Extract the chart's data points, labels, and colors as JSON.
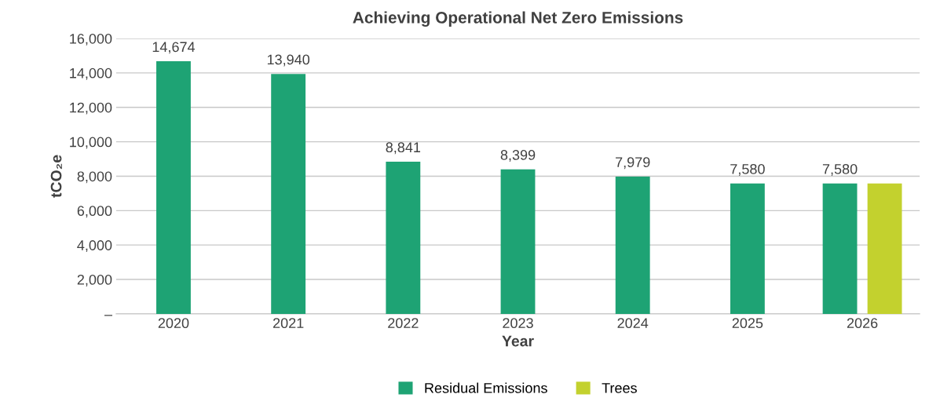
{
  "chart_data": {
    "type": "bar",
    "title": "Achieving Operational Net Zero Emissions",
    "xlabel": "Year",
    "ylabel": "tCO₂e",
    "categories": [
      "2020",
      "2021",
      "2022",
      "2023",
      "2024",
      "2025",
      "2026"
    ],
    "series": [
      {
        "name": "Residual Emissions",
        "color": "#1ea374",
        "values": [
          14674,
          13940,
          8841,
          8399,
          7979,
          7580,
          7580
        ],
        "value_labels": [
          "14,674",
          "13,940",
          "8,841",
          "8,399",
          "7,979",
          "7,580",
          "7,580"
        ]
      },
      {
        "name": "Trees",
        "color": "#c3d12e",
        "values": [
          null,
          null,
          null,
          null,
          null,
          null,
          7580
        ]
      }
    ],
    "ylim": [
      0,
      16000
    ],
    "yticks": [
      {
        "value": 0,
        "label": "–"
      },
      {
        "value": 2000,
        "label": "2,000"
      },
      {
        "value": 4000,
        "label": "4,000"
      },
      {
        "value": 6000,
        "label": "6,000"
      },
      {
        "value": 8000,
        "label": "8,000"
      },
      {
        "value": 10000,
        "label": "10,000"
      },
      {
        "value": 12000,
        "label": "12,000"
      },
      {
        "value": 14000,
        "label": "14,000"
      },
      {
        "value": 16000,
        "label": "16,000"
      }
    ],
    "grid": "y",
    "legend": "bottom"
  }
}
